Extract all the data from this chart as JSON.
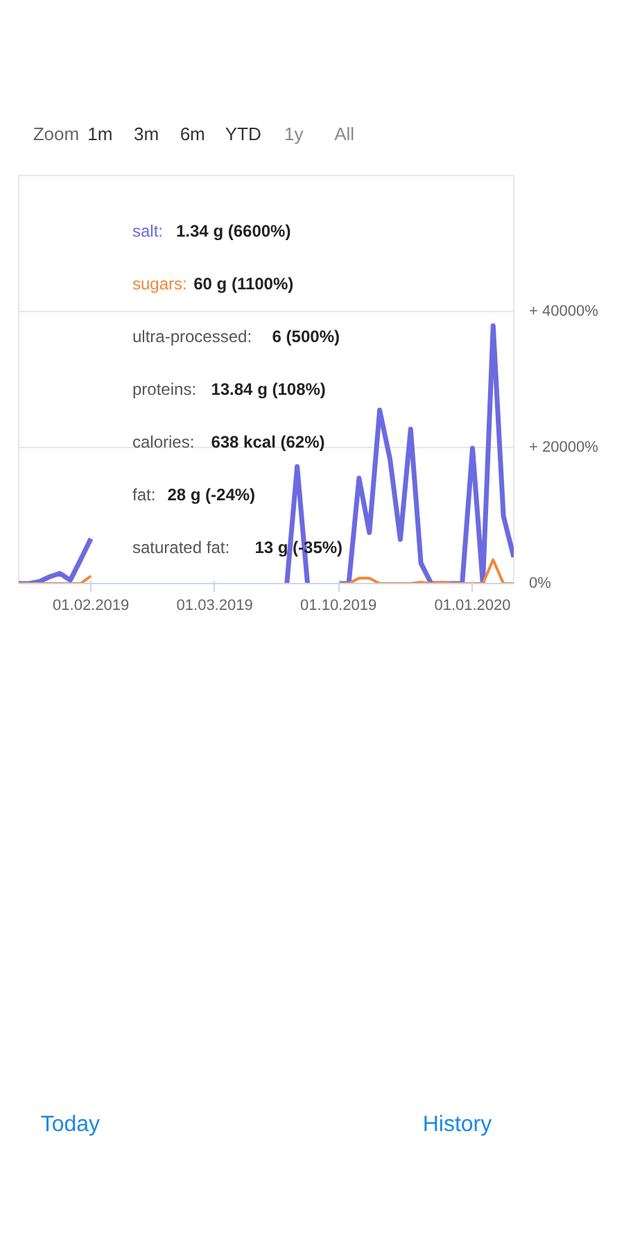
{
  "chart_data": {
    "type": "line",
    "categories": [
      null,
      null,
      null,
      null,
      null,
      null,
      null,
      "01.02.2019",
      null,
      null,
      null,
      null,
      null,
      null,
      null,
      null,
      null,
      null,
      null,
      "01.03.2019",
      null,
      null,
      null,
      null,
      null,
      null,
      null,
      null,
      null,
      null,
      null,
      "01.10.2019",
      null,
      null,
      null,
      null,
      null,
      null,
      null,
      null,
      null,
      null,
      null,
      null,
      "01.01.2020",
      null,
      null,
      null,
      null
    ],
    "series": [
      {
        "color": "#6b6bdf",
        "values": [
          0,
          0,
          300,
          1000,
          1500,
          500,
          3500,
          6600,
          null,
          null,
          null,
          null,
          null,
          null,
          null,
          null,
          null,
          null,
          null,
          null,
          null,
          null,
          null,
          null,
          null,
          null,
          0,
          17200,
          0,
          null,
          null,
          0,
          0,
          15500,
          7500,
          25500,
          18300,
          6500,
          22700,
          3000,
          0,
          0,
          0,
          0,
          19900,
          0,
          37900,
          9900,
          3900
        ]
      },
      {
        "color": "#f0883a",
        "values": [
          0,
          0,
          0,
          0,
          0,
          0,
          0,
          1100,
          null,
          null,
          null,
          null,
          null,
          null,
          null,
          null,
          null,
          null,
          null,
          null,
          null,
          null,
          null,
          null,
          null,
          null,
          null,
          null,
          null,
          null,
          null,
          0,
          0,
          800,
          800,
          0,
          0,
          0,
          0,
          200,
          0,
          200,
          0,
          0,
          0,
          0,
          3500,
          0,
          0
        ]
      }
    ],
    "ylim": [
      0,
      60000
    ],
    "yticks": [
      {
        "value": 0,
        "label": "0%"
      },
      {
        "value": 20000,
        "label": "+ 20000%"
      },
      {
        "value": 40000,
        "label": "+ 40000%"
      }
    ],
    "grid": "y",
    "marker": "none",
    "line_style": "solid",
    "annotations": [
      "salt: 1.34 g (6600%)",
      "sugars: 60 g (1100%)",
      "ultra-processed: 6 (500%)",
      "proteins: 13.84 g (108%)",
      "calories: 638 kcal (62%)",
      "fat: 28 g (-24%)",
      "saturated fat: 13 g (-35%)",
      "Zoom",
      "1m",
      "3m",
      "6m",
      "YTD",
      "1y",
      "All",
      "Today",
      "History"
    ]
  }
}
